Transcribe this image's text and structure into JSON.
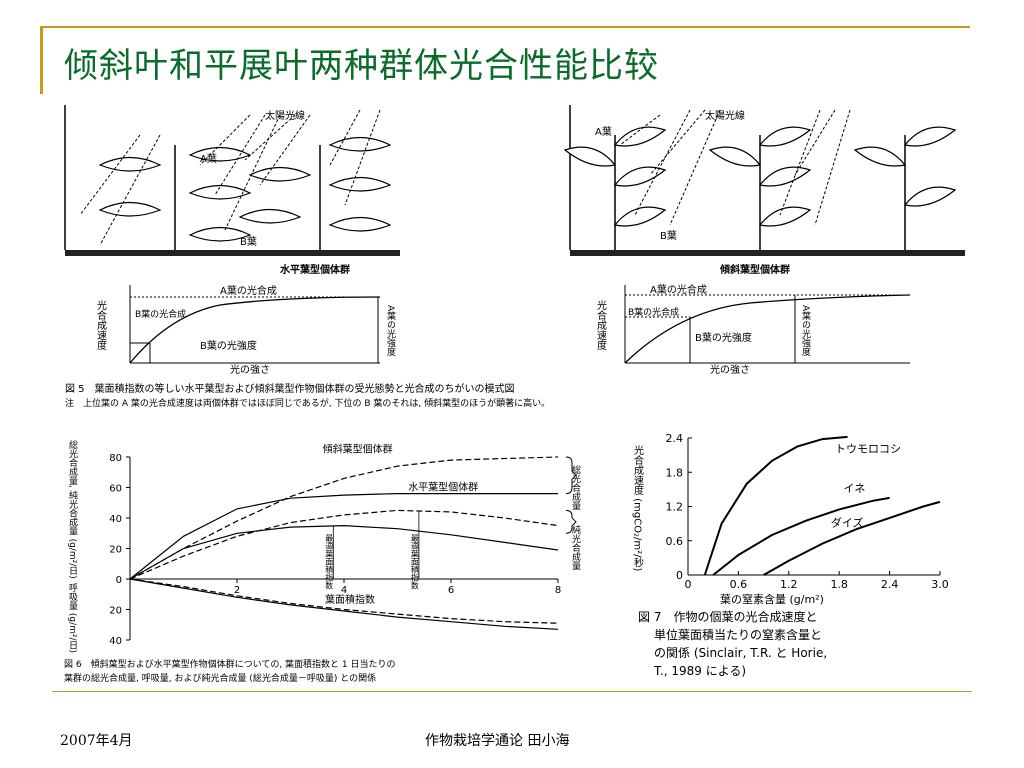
{
  "slide": {
    "title": "倾斜叶和平展叶两种群体光合性能比较",
    "footer_date": "2007年4月",
    "footer_course": "作物栽培学通论  田小海"
  },
  "fig5": {
    "left_panel": {
      "sunlight_label": "太陽光線",
      "leaf_a_label": "A葉",
      "leaf_b_label": "B葉",
      "caption": "水平葉型個体群",
      "curve_a_label": "A葉の光合成",
      "curve_b_label": "B葉の光合成",
      "b_intensity_label": "B葉の光強度",
      "a_intensity_label": "A葉の光強度",
      "x_label": "光の強さ",
      "y_label": "光合成速度"
    },
    "right_panel": {
      "sunlight_label": "太陽光線",
      "leaf_a_label": "A葉",
      "leaf_b_label": "B葉",
      "caption": "傾斜葉型個体群",
      "curve_a_label": "A葉の光合成",
      "curve_b_label": "B葉の光合成",
      "b_intensity_label": "B葉の光強度",
      "a_intensity_label": "A葉の光強度",
      "x_label": "光の強さ",
      "y_label": "光合成速度"
    },
    "caption_line1": "図 5　葉面積指数の等しい水平葉型および傾斜葉型作物個体群の受光態勢と光合成のちがいの模式図",
    "caption_line2": "注　上位葉の A 葉の光合成速度は両個体群ではほぼ同じであるが, 下位の B 葉のそれは, 傾斜葉型のほうが顕著に高い。"
  },
  "chart_data": [
    {
      "id": "fig6",
      "type": "line",
      "xlabel": "葉面積指数",
      "ylabel": "総光合成量, 純光合成量 (g/m²/日)",
      "ylabel_lower": "呼吸量 (g/m²/日)",
      "xlim": [
        0,
        8
      ],
      "ylim": [
        -40,
        80
      ],
      "x_ticks": [
        "2",
        "4",
        "6",
        "8"
      ],
      "y_ticks_upper": [
        "80",
        "60",
        "40",
        "20",
        "0"
      ],
      "y_ticks_lower": [
        "20",
        "40"
      ],
      "series": [
        {
          "name": "傾斜葉型個体群",
          "style": "dashed",
          "group": "総光合成量",
          "x": [
            0,
            1,
            2,
            3,
            4,
            5,
            6,
            7,
            8
          ],
          "y": [
            0,
            20,
            38,
            54,
            66,
            74,
            78,
            79,
            80
          ]
        },
        {
          "name": "水平葉型個体群",
          "style": "solid",
          "group": "総光合成量",
          "x": [
            0,
            1,
            2,
            3,
            4,
            5,
            6,
            7,
            8
          ],
          "y": [
            0,
            28,
            46,
            53,
            55,
            56,
            56,
            56,
            56
          ]
        },
        {
          "style": "dashed",
          "group": "純光合成量",
          "x": [
            0,
            1,
            2,
            3,
            4,
            5,
            6,
            7,
            8
          ],
          "y": [
            0,
            15,
            28,
            37,
            42,
            45,
            44,
            40,
            35
          ]
        },
        {
          "style": "solid",
          "group": "純光合成量",
          "x": [
            0,
            1,
            2,
            3,
            4,
            5,
            6,
            7,
            8
          ],
          "y": [
            0,
            20,
            30,
            34,
            35,
            33,
            29,
            24,
            19
          ]
        },
        {
          "style": "solid",
          "group": "呼吸量",
          "x": [
            0,
            1,
            2,
            3,
            4,
            5,
            6,
            7,
            8
          ],
          "y": [
            0,
            -6,
            -12,
            -17,
            -21,
            -25,
            -28,
            -31,
            -33
          ]
        },
        {
          "style": "dashed",
          "group": "呼吸量",
          "x": [
            0,
            1,
            2,
            3,
            4,
            5,
            6,
            7,
            8
          ],
          "y": [
            0,
            -5,
            -11,
            -16,
            -20,
            -23,
            -26,
            -28,
            -29
          ]
        }
      ],
      "right_labels": [
        "総光合成量",
        "純光合成量"
      ],
      "annotations": [
        "最適葉面積指数",
        "最適葉面積指数"
      ],
      "optimum_lai": [
        3.8,
        5.4
      ],
      "caption_line1": "図 6　傾斜葉型および水平葉型作物個体群についての, 葉面積指数と 1 日当たりの",
      "caption_line2": "葉群の総光合成量, 呼吸量, および純光合成量 (総光合成量－呼吸量) との関係"
    },
    {
      "id": "fig7",
      "type": "line",
      "xlabel": "葉の窒素含量 (g/m²)",
      "ylabel": "光合成速度 (mgCO₂/m²/秒)",
      "xlim": [
        0,
        3.0
      ],
      "ylim": [
        0,
        2.4
      ],
      "x_ticks": [
        "0",
        "0.6",
        "1.2",
        "1.8",
        "2.4",
        "3.0"
      ],
      "y_ticks": [
        "0",
        "0.6",
        "1.2",
        "1.8",
        "2.4"
      ],
      "series": [
        {
          "name": "トウモロコシ",
          "x": [
            0.2,
            0.4,
            0.7,
            1.0,
            1.3,
            1.6,
            1.9
          ],
          "y": [
            0,
            0.9,
            1.6,
            2.0,
            2.25,
            2.38,
            2.42
          ]
        },
        {
          "name": "イネ",
          "x": [
            0.3,
            0.6,
            1.0,
            1.4,
            1.8,
            2.2,
            2.4
          ],
          "y": [
            0,
            0.35,
            0.7,
            0.95,
            1.15,
            1.3,
            1.35
          ]
        },
        {
          "name": "ダイズ",
          "x": [
            0.9,
            1.2,
            1.6,
            2.0,
            2.4,
            2.8,
            3.0
          ],
          "y": [
            0,
            0.25,
            0.55,
            0.8,
            1.0,
            1.2,
            1.28
          ]
        }
      ],
      "caption_line1": "図 7　作物の個葉の光合成速度と",
      "caption_line2": "単位葉面積当たりの窒素含量と",
      "caption_line3": "の関係 (Sinclair, T.R. と Horie,",
      "caption_line4": "T., 1989 による)"
    }
  ]
}
